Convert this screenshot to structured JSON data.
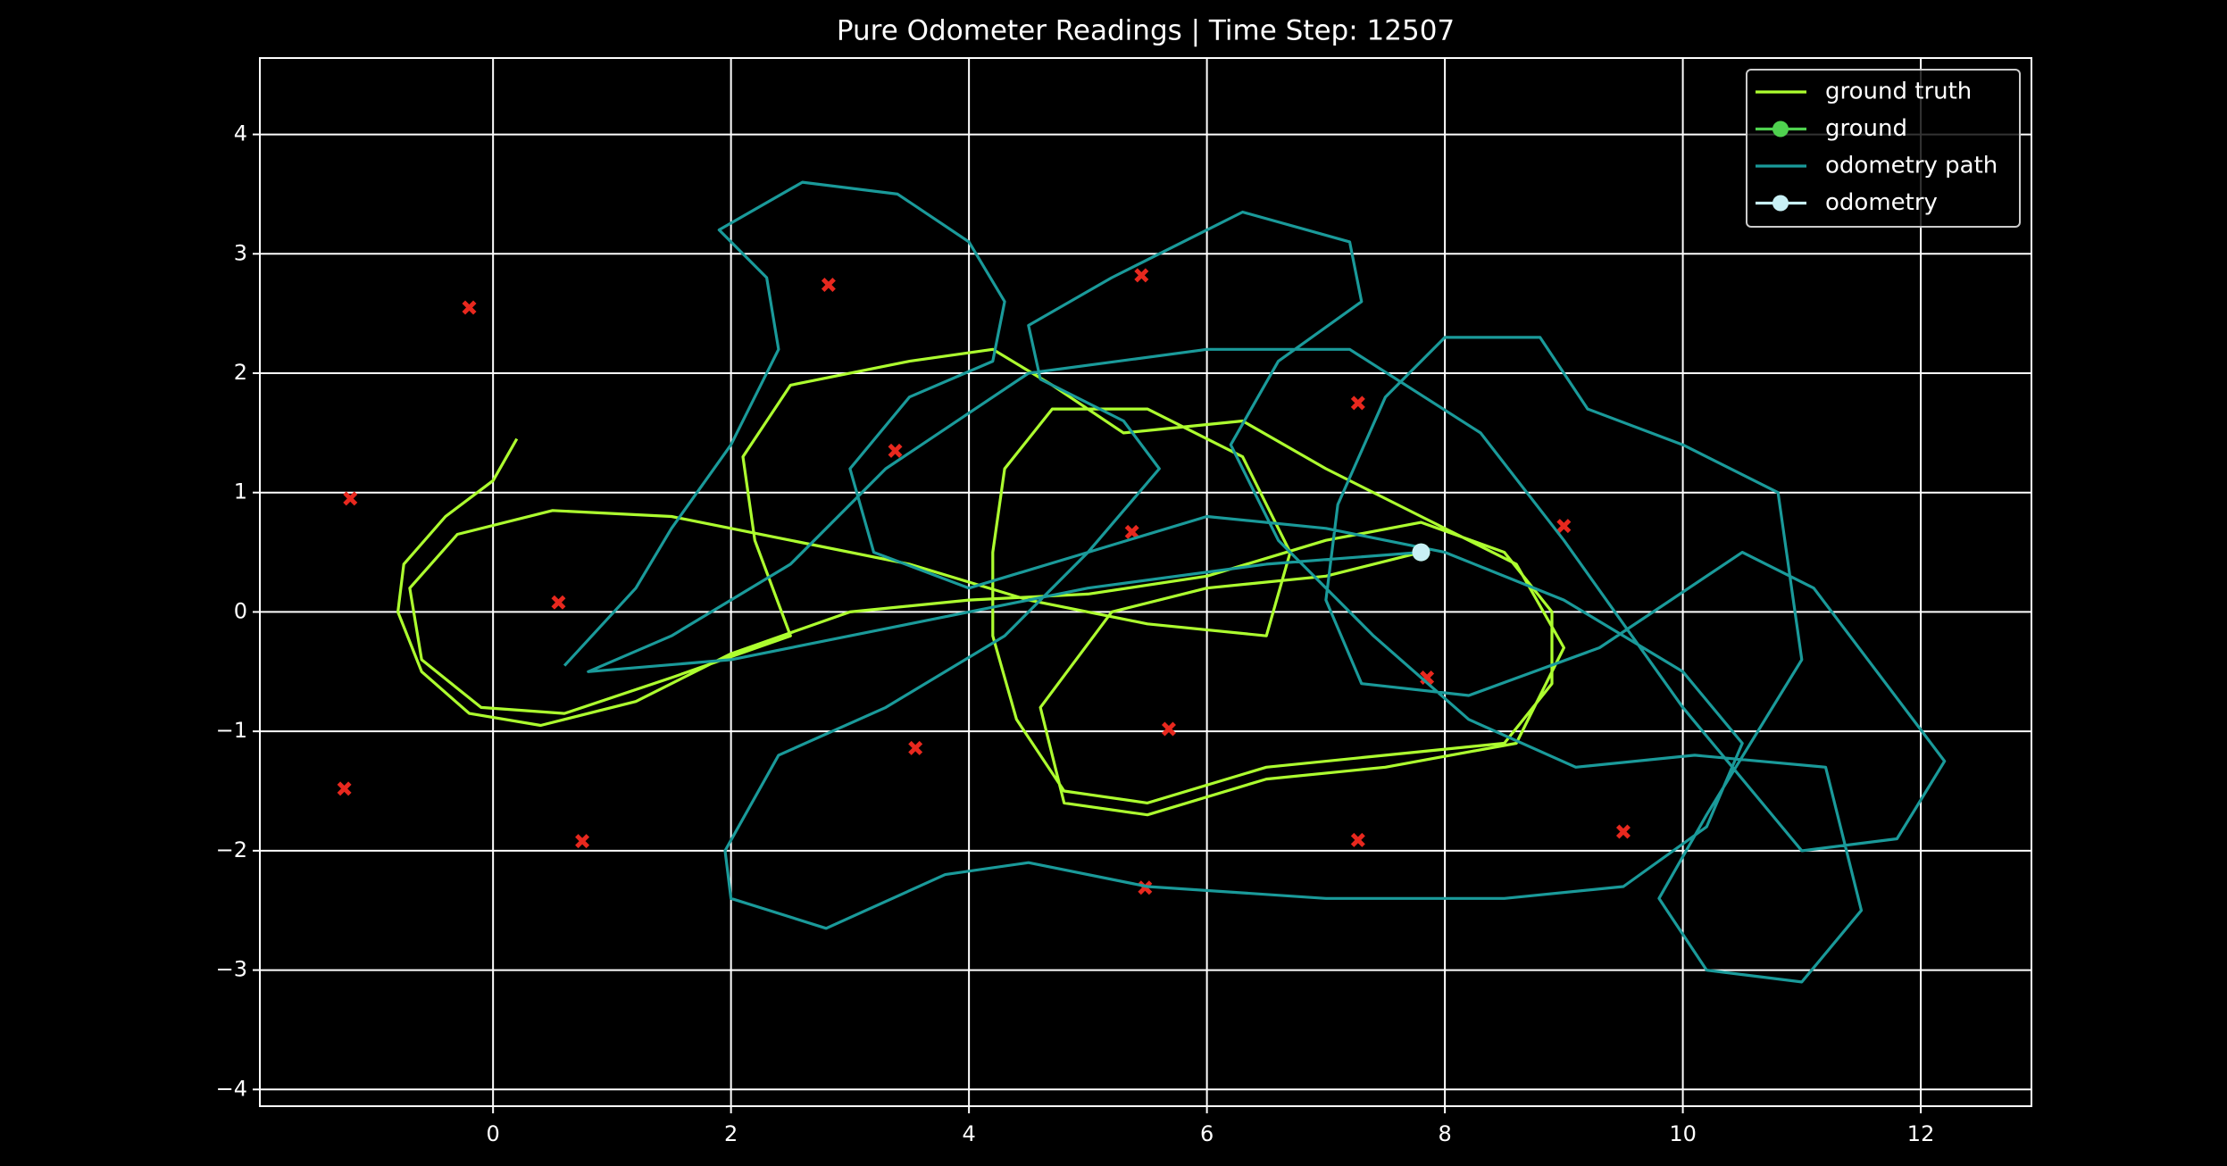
{
  "chart_data": {
    "type": "line",
    "title": "Pure Odometer Readings | Time Step: 12507",
    "xlim": [
      -1.96,
      12.93
    ],
    "ylim": [
      -4.14,
      4.64
    ],
    "xticks": [
      0,
      2,
      4,
      6,
      8,
      10,
      12
    ],
    "yticks": [
      {
        "value": -4,
        "label": "−4"
      },
      {
        "value": -3,
        "label": "−3"
      },
      {
        "value": -2,
        "label": "−2"
      },
      {
        "value": -1,
        "label": "−1"
      },
      0,
      1,
      2,
      3,
      4
    ],
    "grid": true,
    "legend": "upper right",
    "series": [
      {
        "name": "ground truth",
        "kind": "line",
        "color": "#adff2f",
        "x": [
          0.2,
          0,
          -0.4,
          -0.75,
          -0.8,
          -0.6,
          -0.2,
          0.4,
          1.2,
          2,
          3,
          4,
          5,
          6,
          7,
          7.8,
          8.5,
          8.9,
          8.9,
          8.5,
          7.5,
          6.5,
          5.5,
          4.8,
          4.4,
          4.2,
          4.2,
          4.3,
          4.7,
          5.5,
          6.3,
          6.7,
          6.5,
          5.5,
          4.5,
          3.5,
          2.5,
          1.5,
          0.5,
          -0.3,
          -0.7,
          -0.6,
          -0.1,
          0.6,
          1.5,
          2.5,
          2.2,
          2.1,
          2.5,
          3.5,
          4.2,
          4.7,
          5.3,
          6.3,
          7,
          7.8,
          8.6,
          9,
          8.6,
          7.5,
          6.5,
          5.5,
          4.8,
          4.6,
          5.2,
          6,
          7,
          7.8
        ],
        "y": [
          1.45,
          1.1,
          0.8,
          0.4,
          0,
          -0.5,
          -0.85,
          -0.95,
          -0.75,
          -0.35,
          0,
          0.1,
          0.15,
          0.3,
          0.6,
          0.75,
          0.5,
          0,
          -0.6,
          -1.1,
          -1.2,
          -1.3,
          -1.6,
          -1.5,
          -0.9,
          -0.2,
          0.5,
          1.2,
          1.7,
          1.7,
          1.3,
          0.5,
          -0.2,
          -0.1,
          0.1,
          0.4,
          0.6,
          0.8,
          0.85,
          0.65,
          0.2,
          -0.4,
          -0.8,
          -0.85,
          -0.55,
          -0.2,
          0.6,
          1.3,
          1.9,
          2.1,
          2.2,
          1.9,
          1.5,
          1.6,
          1.2,
          0.8,
          0.4,
          -0.3,
          -1.1,
          -1.3,
          -1.4,
          -1.7,
          -1.6,
          -0.8,
          0,
          0.2,
          0.3,
          0.5
        ]
      },
      {
        "name": "ground",
        "kind": "marker",
        "color": "#4fd14f",
        "x": [
          7.8
        ],
        "y": [
          0.5
        ]
      },
      {
        "name": "odometry path",
        "kind": "line",
        "color": "#1a9a9a",
        "x": [
          0.6,
          1.2,
          1.5,
          2,
          2.4,
          2.3,
          1.9,
          2.6,
          3.4,
          4,
          4.3,
          4.2,
          3.5,
          3,
          3.2,
          4,
          5,
          6,
          7,
          8,
          9,
          10,
          10.5,
          10.2,
          9.5,
          8.5,
          7,
          5.5,
          4.5,
          3.8,
          2.8,
          2,
          1.95,
          2.4,
          3.3,
          4.3,
          5,
          5.6,
          5.3,
          4.6,
          4.5,
          5.2,
          6.3,
          7.2,
          7.3,
          6.6,
          6.2,
          6.6,
          7.4,
          8.2,
          9.1,
          10.1,
          11.2,
          11.5,
          11,
          10.2,
          9.8,
          10.2,
          11,
          10.8,
          10,
          9.2,
          8.8,
          8,
          7.5,
          7.1,
          7,
          7.3,
          8.2,
          9.3,
          10.5,
          11.1,
          12.2,
          11.8,
          11,
          10,
          9,
          8.3,
          7.2,
          6,
          4.5,
          3.3,
          2.5,
          1.5,
          0.8,
          2,
          3.5,
          5,
          6.5,
          7.8
        ],
        "y": [
          -0.45,
          0.2,
          0.7,
          1.4,
          2.2,
          2.8,
          3.2,
          3.6,
          3.5,
          3.1,
          2.6,
          2.1,
          1.8,
          1.2,
          0.5,
          0.2,
          0.5,
          0.8,
          0.7,
          0.5,
          0.1,
          -0.5,
          -1.1,
          -1.8,
          -2.3,
          -2.4,
          -2.4,
          -2.3,
          -2.1,
          -2.2,
          -2.65,
          -2.4,
          -2,
          -1.2,
          -0.8,
          -0.2,
          0.5,
          1.2,
          1.6,
          1.95,
          2.4,
          2.8,
          3.35,
          3.1,
          2.6,
          2.1,
          1.4,
          0.6,
          -0.2,
          -0.9,
          -1.3,
          -1.2,
          -1.3,
          -2.5,
          -3.1,
          -3,
          -2.4,
          -1.7,
          -0.4,
          1,
          1.4,
          1.7,
          2.3,
          2.3,
          1.8,
          0.9,
          0.1,
          -0.6,
          -0.7,
          -0.3,
          0.5,
          0.2,
          -1.25,
          -1.9,
          -2,
          -0.8,
          0.6,
          1.5,
          2.2,
          2.2,
          2,
          1.2,
          0.4,
          -0.2,
          -0.5,
          -0.4,
          -0.1,
          0.2,
          0.4,
          0.5
        ]
      },
      {
        "name": "odometry",
        "kind": "marker",
        "color": "#c8f0f5",
        "x": [
          7.8
        ],
        "y": [
          0.5
        ]
      }
    ],
    "landmarks": {
      "color": "#e8281e",
      "x": [
        -0.2,
        -1.2,
        0.55,
        -1.25,
        0.75,
        2.82,
        3.38,
        3.55,
        5.45,
        5.37,
        5.68,
        5.48,
        7.27,
        7.27,
        7.85,
        9.0,
        9.5
      ],
      "y": [
        2.55,
        0.95,
        0.08,
        -1.48,
        -1.92,
        2.74,
        1.35,
        -1.14,
        2.82,
        0.67,
        -0.98,
        -2.31,
        1.75,
        -1.91,
        -0.55,
        0.72,
        -1.84
      ]
    }
  }
}
